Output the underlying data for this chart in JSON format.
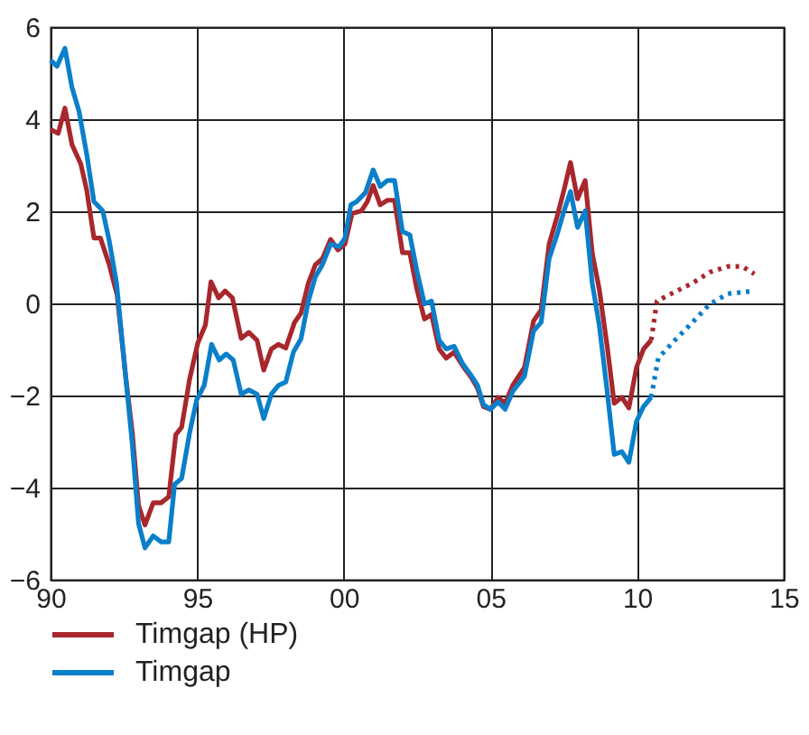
{
  "chart_data": {
    "type": "line",
    "xlim": [
      1990,
      2015
    ],
    "ylim": [
      -6,
      6
    ],
    "xticks": [
      {
        "value": 1990,
        "label": "90"
      },
      {
        "value": 1995,
        "label": "95"
      },
      {
        "value": 2000,
        "label": "00"
      },
      {
        "value": 2005,
        "label": "05"
      },
      {
        "value": 2010,
        "label": "10"
      },
      {
        "value": 2015,
        "label": "15"
      }
    ],
    "yticks": [
      -6,
      -4,
      -2,
      0,
      2,
      4,
      6
    ],
    "grid": true,
    "legend": "bottom left",
    "series": [
      {
        "name": "Timgap (HP)",
        "color": "#a8272d",
        "line_style": "solid",
        "x": [
          1990.0,
          1990.26,
          1990.49,
          1990.73,
          1991.03,
          1991.23,
          1991.48,
          1991.7,
          1992.0,
          1992.27,
          1992.55,
          1992.79,
          1993.0,
          1993.22,
          1993.5,
          1993.77,
          1994.03,
          1994.27,
          1994.47,
          1994.74,
          1995.02,
          1995.28,
          1995.47,
          1995.73,
          1995.95,
          1996.2,
          1996.5,
          1996.76,
          1997.04,
          1997.27,
          1997.53,
          1997.77,
          1998.02,
          1998.32,
          1998.54,
          1998.79,
          1999.03,
          1999.27,
          1999.55,
          1999.8,
          2000.04,
          2000.28,
          2000.6,
          2000.8,
          2001.0,
          2001.24,
          2001.49,
          2001.73,
          2002.0,
          2002.25,
          2002.49,
          2002.75,
          2002.99,
          2003.25,
          2003.49,
          2003.76,
          2004.06,
          2004.36,
          2004.56,
          2004.76,
          2005.0,
          2005.26,
          2005.5,
          2005.76,
          2006.16,
          2006.47,
          2006.73,
          2007.0,
          2007.27,
          2007.51,
          2007.73,
          2007.97,
          2008.23,
          2008.47,
          2008.71,
          2008.98,
          2009.22,
          2009.48,
          2009.72,
          2009.98,
          2010.22,
          2010.48
        ],
        "values": [
          3.78,
          3.69,
          4.24,
          3.45,
          3.03,
          2.47,
          1.42,
          1.42,
          0.84,
          0.18,
          -1.52,
          -2.82,
          -4.39,
          -4.81,
          -4.33,
          -4.33,
          -4.2,
          -2.85,
          -2.69,
          -1.65,
          -0.86,
          -0.47,
          0.47,
          0.12,
          0.27,
          0.12,
          -0.76,
          -0.63,
          -0.8,
          -1.45,
          -0.99,
          -0.89,
          -0.97,
          -0.41,
          -0.21,
          0.44,
          0.84,
          0.97,
          1.39,
          1.16,
          1.29,
          1.95,
          2.01,
          2.21,
          2.56,
          2.14,
          2.24,
          2.24,
          1.1,
          1.1,
          0.31,
          -0.34,
          -0.24,
          -0.99,
          -1.19,
          -1.06,
          -1.36,
          -1.62,
          -1.84,
          -2.24,
          -2.3,
          -2.04,
          -2.17,
          -1.78,
          -1.39,
          -0.38,
          -0.14,
          1.29,
          1.88,
          2.47,
          3.06,
          2.27,
          2.67,
          1.1,
          0.31,
          -0.93,
          -2.17,
          -2.04,
          -2.27,
          -1.39,
          -0.99,
          -0.8
        ]
      },
      {
        "name": "Timgap",
        "color": "#0a7fca",
        "line_style": "solid",
        "x": [
          1990.0,
          1990.22,
          1990.49,
          1990.73,
          1990.97,
          1991.23,
          1991.48,
          1991.78,
          1992.0,
          1992.25,
          1992.55,
          1992.79,
          1993.0,
          1993.22,
          1993.5,
          1993.77,
          1994.03,
          1994.23,
          1994.47,
          1994.74,
          1994.98,
          1995.24,
          1995.49,
          1995.75,
          1995.99,
          1996.23,
          1996.5,
          1996.76,
          1997.04,
          1997.27,
          1997.53,
          1997.77,
          1998.02,
          1998.28,
          1998.54,
          1998.79,
          1999.03,
          1999.27,
          1999.55,
          1999.84,
          2000.04,
          2000.24,
          2000.44,
          2000.74,
          2001.0,
          2001.24,
          2001.49,
          2001.73,
          2002.0,
          2002.25,
          2002.49,
          2002.75,
          2002.99,
          2003.25,
          2003.49,
          2003.76,
          2004.06,
          2004.36,
          2004.56,
          2004.76,
          2005.0,
          2005.26,
          2005.5,
          2005.76,
          2006.16,
          2006.47,
          2006.73,
          2007.0,
          2007.27,
          2007.51,
          2007.73,
          2007.97,
          2008.23,
          2008.47,
          2008.71,
          2008.98,
          2009.22,
          2009.48,
          2009.72,
          2009.98,
          2010.22,
          2010.48
        ],
        "values": [
          5.28,
          5.15,
          5.54,
          4.69,
          4.17,
          3.25,
          2.21,
          2.01,
          1.36,
          0.44,
          -1.52,
          -3.08,
          -4.78,
          -5.31,
          -5.05,
          -5.18,
          -5.18,
          -3.93,
          -3.8,
          -2.82,
          -2.1,
          -1.78,
          -0.89,
          -1.23,
          -1.1,
          -1.23,
          -1.97,
          -1.88,
          -1.97,
          -2.5,
          -1.97,
          -1.78,
          -1.71,
          -1.06,
          -0.77,
          0.05,
          0.58,
          0.84,
          1.29,
          1.23,
          1.42,
          2.14,
          2.21,
          2.41,
          2.9,
          2.54,
          2.67,
          2.67,
          1.56,
          1.49,
          0.71,
          -0.01,
          0.05,
          -0.8,
          -0.99,
          -0.93,
          -1.32,
          -1.58,
          -1.78,
          -2.2,
          -2.3,
          -2.14,
          -2.3,
          -1.91,
          -1.58,
          -0.6,
          -0.41,
          0.97,
          1.49,
          2.01,
          2.43,
          1.65,
          2.01,
          0.44,
          -0.47,
          -1.91,
          -3.28,
          -3.22,
          -3.45,
          -2.56,
          -2.24,
          -2.04
        ]
      },
      {
        "color": "#a8272d",
        "line_style": "dotted",
        "x": [
          2010.48,
          2010.68,
          2011.29,
          2011.89,
          2012.49,
          2013.09,
          2013.59,
          2014.0
        ],
        "values": [
          -0.8,
          0.05,
          0.25,
          0.44,
          0.68,
          0.8,
          0.8,
          0.64
        ]
      },
      {
        "color": "#0a7fca",
        "line_style": "dotted",
        "x": [
          2010.48,
          2010.72,
          2011.29,
          2011.89,
          2012.49,
          2013.09,
          2014.0
        ],
        "values": [
          -2.04,
          -1.19,
          -0.8,
          -0.41,
          -0.01,
          0.21,
          0.27
        ]
      }
    ]
  }
}
